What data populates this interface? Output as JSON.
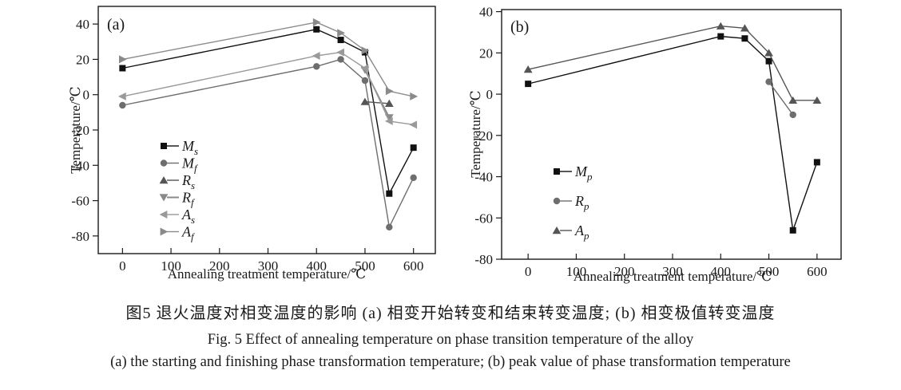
{
  "figure": {
    "caption_zh": "图5  退火温度对相变温度的影响  (a) 相变开始转变和结束转变温度; (b) 相变极值转变温度",
    "caption_en": "Fig. 5  Effect of annealing temperature on phase transition temperature of the alloy",
    "caption_sub": "(a) the starting and finishing phase transformation temperature; (b) peak value of phase transformation temperature"
  },
  "chart_data": [
    {
      "type": "line",
      "panel": "(a)",
      "xlabel": "Annealing treatment temperature/℃",
      "ylabel": "Temperature/℃",
      "xlim": [
        -50,
        645
      ],
      "ylim": [
        -90,
        50
      ],
      "xticks": [
        0,
        100,
        200,
        300,
        400,
        500,
        600
      ],
      "yticks": [
        -80,
        -60,
        -40,
        -20,
        0,
        20,
        40
      ],
      "grid": false,
      "legend_position": "inside-lower-left",
      "series": [
        {
          "name": "M",
          "sub": "s",
          "marker": "square",
          "color": "#111111",
          "line_width": 1.4,
          "points": [
            [
              0,
              15
            ],
            [
              400,
              37
            ],
            [
              450,
              31
            ],
            [
              500,
              24
            ],
            [
              550,
              -56
            ],
            [
              600,
              -30
            ]
          ]
        },
        {
          "name": "M",
          "sub": "f",
          "marker": "circle",
          "color": "#6e6e6e",
          "line_width": 1.4,
          "points": [
            [
              0,
              -6
            ],
            [
              400,
              16
            ],
            [
              450,
              20
            ],
            [
              500,
              8
            ],
            [
              550,
              -75
            ],
            [
              600,
              -47
            ]
          ]
        },
        {
          "name": "R",
          "sub": "s",
          "marker": "triangle-up",
          "color": "#555555",
          "line_width": 1.4,
          "points": [
            [
              500,
              -4
            ],
            [
              550,
              -5
            ]
          ]
        },
        {
          "name": "R",
          "sub": "f",
          "marker": "triangle-down",
          "color": "#8a8a8a",
          "line_width": 2.0,
          "points": [
            [
              500,
              14
            ],
            [
              550,
              -13
            ]
          ]
        },
        {
          "name": "A",
          "sub": "s",
          "marker": "triangle-left",
          "color": "#9a9a9a",
          "line_width": 1.4,
          "points": [
            [
              0,
              -1
            ],
            [
              400,
              22
            ],
            [
              450,
              24
            ],
            [
              500,
              15
            ],
            [
              550,
              -15
            ],
            [
              600,
              -17
            ]
          ]
        },
        {
          "name": "A",
          "sub": "f",
          "marker": "triangle-right",
          "color": "#8a8a8a",
          "line_width": 1.4,
          "points": [
            [
              0,
              20
            ],
            [
              400,
              41
            ],
            [
              450,
              35
            ],
            [
              500,
              25
            ],
            [
              550,
              2
            ],
            [
              600,
              -1
            ]
          ]
        }
      ]
    },
    {
      "type": "line",
      "panel": "(b)",
      "xlabel": "Annealing treatment temperature/℃",
      "ylabel": "Temperature/℃",
      "xlim": [
        -55,
        650
      ],
      "ylim": [
        -80,
        41
      ],
      "xticks": [
        0,
        100,
        200,
        300,
        400,
        500,
        600
      ],
      "yticks": [
        -80,
        -60,
        -40,
        -20,
        0,
        20,
        40
      ],
      "grid": false,
      "legend_position": "inside-middle-left",
      "series": [
        {
          "name": "M",
          "sub": "p",
          "marker": "square",
          "color": "#111111",
          "line_width": 1.4,
          "points": [
            [
              0,
              5
            ],
            [
              400,
              28
            ],
            [
              450,
              27
            ],
            [
              500,
              16
            ],
            [
              550,
              -66
            ],
            [
              600,
              -33
            ]
          ]
        },
        {
          "name": "R",
          "sub": "p",
          "marker": "circle",
          "color": "#6e6e6e",
          "line_width": 1.4,
          "points": [
            [
              500,
              6
            ],
            [
              550,
              -10
            ]
          ]
        },
        {
          "name": "A",
          "sub": "p",
          "marker": "triangle-up",
          "color": "#555555",
          "line_width": 1.4,
          "points": [
            [
              0,
              12
            ],
            [
              400,
              33
            ],
            [
              450,
              32
            ],
            [
              500,
              20
            ],
            [
              550,
              -3
            ],
            [
              600,
              -3
            ]
          ]
        }
      ]
    }
  ]
}
